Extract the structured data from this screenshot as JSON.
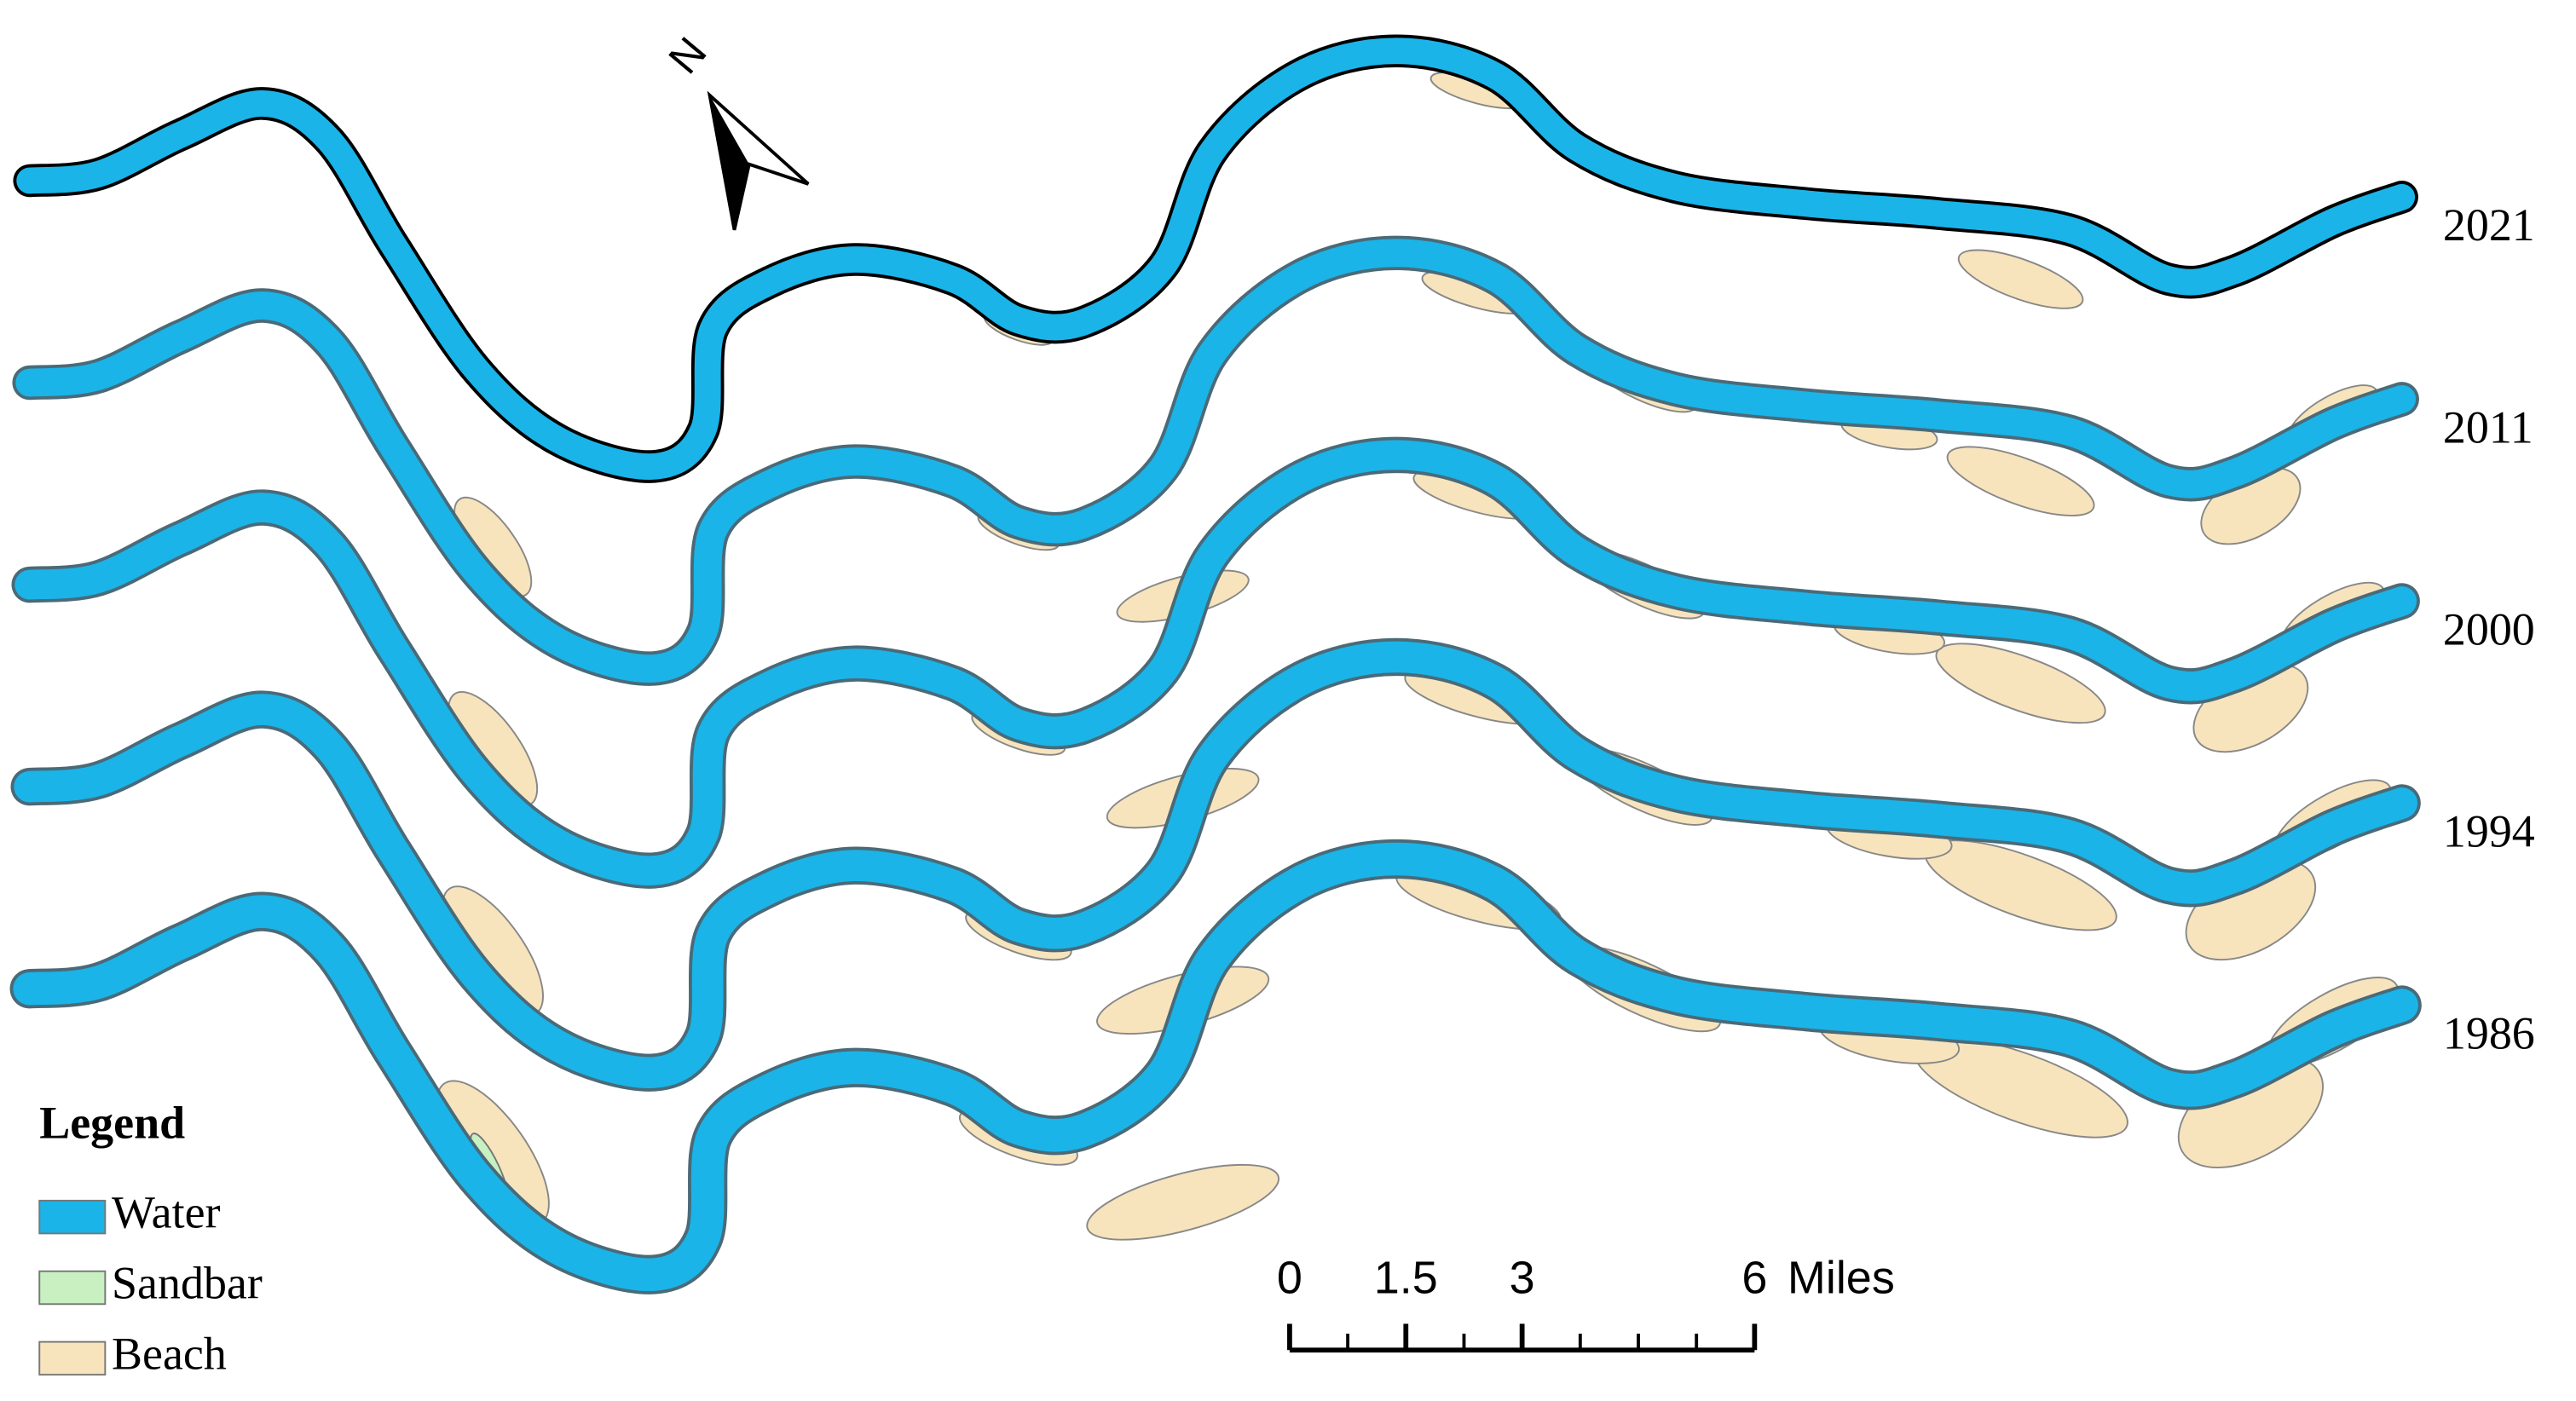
{
  "north_label": "N",
  "years": [
    "2021",
    "2011",
    "2000",
    "1994",
    "1986"
  ],
  "legend": {
    "title": "Legend",
    "items": [
      {
        "label": "Water",
        "color": "#1ab4e8"
      },
      {
        "label": "Sandbar",
        "color": "#c8f0c0"
      },
      {
        "label": "Beach",
        "color": "#f7e4bd"
      }
    ]
  },
  "scale_bar": {
    "ticks": [
      0,
      1.5,
      3,
      6
    ],
    "unit": "Miles"
  }
}
